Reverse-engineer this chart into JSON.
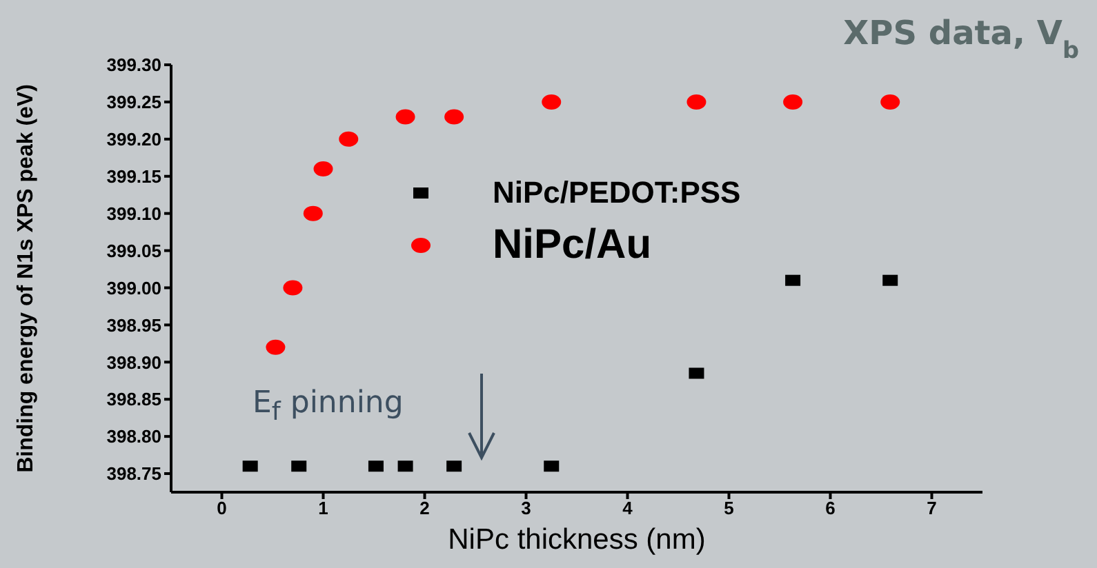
{
  "chart_data": {
    "type": "scatter",
    "title": "XPS data, V$_{b}$",
    "xlabel": "NiPc thickness (nm)",
    "ylabel": "Binding energy of N1s XPS peak (eV)",
    "xlim": [
      -0.5,
      7.5
    ],
    "xticks": [
      0,
      1,
      2,
      3,
      4,
      5,
      6,
      7
    ],
    "ylim": [
      398.725,
      399.3
    ],
    "yticks": [
      {
        "value": 398.75,
        "label": "398.75"
      },
      {
        "value": 398.8,
        "label": "398.80"
      },
      {
        "value": 398.85,
        "label": "398.85"
      },
      {
        "value": 398.9,
        "label": "398.90"
      },
      {
        "value": 398.95,
        "label": "398.95"
      },
      {
        "value": 399.0,
        "label": "399.00"
      },
      {
        "value": 399.05,
        "label": "399.05"
      },
      {
        "value": 399.1,
        "label": "399.10"
      },
      {
        "value": 399.15,
        "label": "399.15"
      },
      {
        "value": 399.2,
        "label": "399.20"
      },
      {
        "value": 399.25,
        "label": "399.25"
      },
      {
        "value": 399.3,
        "label": "399.30"
      }
    ],
    "grid": false,
    "legend": "right",
    "annotations": [
      "E$_{f}$ pinning"
    ],
    "series": [
      {
        "name": "NiPc/PEDOT:PSS",
        "color": "#000000",
        "marker": "square",
        "x": [
          0.28,
          0.76,
          1.52,
          1.81,
          2.29,
          3.25,
          4.68,
          5.63,
          6.59
        ],
        "values": [
          398.76,
          398.76,
          398.76,
          398.76,
          398.76,
          398.76,
          398.885,
          399.01,
          399.01
        ]
      },
      {
        "name": "NiPc/Au",
        "color": "#ff0000",
        "marker": "circle",
        "x": [
          0.53,
          0.7,
          0.9,
          1.0,
          1.25,
          1.81,
          2.29,
          3.25,
          4.68,
          5.63,
          6.59
        ],
        "values": [
          398.92,
          399.0,
          399.1,
          399.16,
          399.2,
          399.23,
          399.23,
          399.25,
          399.25,
          399.25,
          399.25
        ]
      }
    ]
  }
}
